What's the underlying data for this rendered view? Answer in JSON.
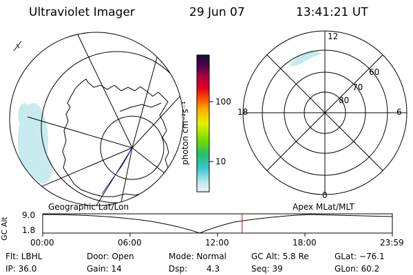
{
  "header": {
    "title": "Ultraviolet Imager",
    "date": "29 Jun 07",
    "time": "13:41:21 UT"
  },
  "colorbar": {
    "unit_label": "photon cm⁻²s⁻¹",
    "tick_100": "100",
    "tick_10": "10"
  },
  "polar_plot": {
    "label_top": "12",
    "label_bottom": "0",
    "label_left": "18",
    "label_right": "6",
    "ring_labels": [
      "60",
      "70",
      "80"
    ]
  },
  "panel_labels": {
    "left": "Geographic Lat/Lon",
    "right": "Apex MLat/MLT"
  },
  "altitude_plot": {
    "ylabel": "GC Alt",
    "ymax": "9.0",
    "ymin": "1.8",
    "x_ticks": [
      "00:00",
      "06:00",
      "12:00",
      "18:00",
      "23:59"
    ],
    "current_time_fraction": 0.5704
  },
  "info": {
    "flt": "Flt: LBHL",
    "ip": "IP: 36.0",
    "door": "Door: Open",
    "gain": "Gain: 14",
    "mode": "Mode: Normal",
    "dsp_label": "Dsp:",
    "dsp_value": "4.3",
    "gc_alt": "GC Alt: 5.8 Re",
    "seq": "Seq: 39",
    "glat": "GLat: −76.1",
    "glon": "GLon: 60.2"
  },
  "colors": {
    "aurora": "#bfe8ee",
    "marker": "#e00000",
    "track": "#2020c0"
  }
}
